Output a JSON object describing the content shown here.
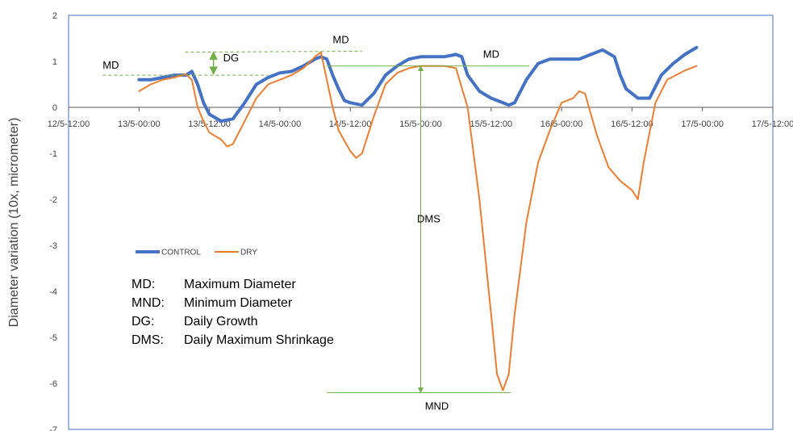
{
  "chart_data": {
    "type": "line",
    "title": "",
    "xlabel": "",
    "ylabel": "Diameter variation (10x, micrometer)",
    "ylim": [
      -7,
      2
    ],
    "xlim": [
      "12/5-12:00",
      "17/5-12:00"
    ],
    "yticks": [
      2,
      1,
      0,
      -1,
      -2,
      -3,
      -4,
      -5,
      -6,
      -7
    ],
    "xticks": [
      "12/5-12:00",
      "13/5-00:00",
      "13/5-12:00",
      "14/5-00:00",
      "14/5-12:00",
      "15/5-00:00",
      "15/5-12:00",
      "16/5-00:00",
      "16/5-12:00",
      "17/5-00:00",
      "17/5-12:00"
    ],
    "grid": false,
    "legend_position": "bottom-left",
    "series": [
      {
        "name": "CONTROL",
        "color": "#4472C4",
        "points": [
          [
            "13/5-00:00",
            0.6
          ],
          [
            "13/5-02:00",
            0.6
          ],
          [
            "13/5-04:00",
            0.65
          ],
          [
            "13/5-06:00",
            0.7
          ],
          [
            "13/5-08:00",
            0.7
          ],
          [
            "13/5-09:00",
            0.78
          ],
          [
            "13/5-10:00",
            0.5
          ],
          [
            "13/5-11:00",
            0.1
          ],
          [
            "13/5-12:00",
            -0.15
          ],
          [
            "13/5-14:00",
            -0.3
          ],
          [
            "13/5-16:00",
            -0.25
          ],
          [
            "13/5-18:00",
            0.1
          ],
          [
            "13/5-20:00",
            0.5
          ],
          [
            "13/5-22:00",
            0.65
          ],
          [
            "14/5-00:00",
            0.75
          ],
          [
            "14/5-02:00",
            0.78
          ],
          [
            "14/5-04:00",
            0.9
          ],
          [
            "14/5-06:00",
            1.05
          ],
          [
            "14/5-07:00",
            1.1
          ],
          [
            "14/5-08:00",
            1.05
          ],
          [
            "14/5-09:00",
            0.7
          ],
          [
            "14/5-10:00",
            0.4
          ],
          [
            "14/5-11:00",
            0.15
          ],
          [
            "14/5-12:00",
            0.1
          ],
          [
            "14/5-14:00",
            0.05
          ],
          [
            "14/5-16:00",
            0.3
          ],
          [
            "14/5-18:00",
            0.7
          ],
          [
            "14/5-20:00",
            0.9
          ],
          [
            "14/5-22:00",
            1.05
          ],
          [
            "15/5-00:00",
            1.1
          ],
          [
            "15/5-04:00",
            1.1
          ],
          [
            "15/5-06:00",
            1.15
          ],
          [
            "15/5-07:00",
            1.1
          ],
          [
            "15/5-08:00",
            0.7
          ],
          [
            "15/5-10:00",
            0.35
          ],
          [
            "15/5-12:00",
            0.2
          ],
          [
            "15/5-14:00",
            0.1
          ],
          [
            "15/5-15:00",
            0.05
          ],
          [
            "15/5-16:00",
            0.1
          ],
          [
            "15/5-18:00",
            0.6
          ],
          [
            "15/5-20:00",
            0.95
          ],
          [
            "15/5-22:00",
            1.05
          ],
          [
            "16/5-00:00",
            1.05
          ],
          [
            "16/5-03:00",
            1.05
          ],
          [
            "16/5-05:00",
            1.15
          ],
          [
            "16/5-07:00",
            1.25
          ],
          [
            "16/5-09:00",
            1.1
          ],
          [
            "16/5-10:00",
            0.7
          ],
          [
            "16/5-11:00",
            0.4
          ],
          [
            "16/5-13:00",
            0.2
          ],
          [
            "16/5-15:00",
            0.2
          ],
          [
            "16/5-17:00",
            0.7
          ],
          [
            "16/5-19:00",
            0.95
          ],
          [
            "16/5-21:00",
            1.15
          ],
          [
            "16/5-23:00",
            1.3
          ]
        ]
      },
      {
        "name": "DRY",
        "color": "#ED7D31",
        "points": [
          [
            "13/5-00:00",
            0.35
          ],
          [
            "13/5-02:00",
            0.5
          ],
          [
            "13/5-04:00",
            0.6
          ],
          [
            "13/5-06:00",
            0.65
          ],
          [
            "13/5-08:00",
            0.72
          ],
          [
            "13/5-09:00",
            0.6
          ],
          [
            "13/5-10:00",
            0.0
          ],
          [
            "13/5-11:00",
            -0.3
          ],
          [
            "13/5-12:00",
            -0.55
          ],
          [
            "13/5-14:00",
            -0.7
          ],
          [
            "13/5-15:00",
            -0.85
          ],
          [
            "13/5-16:00",
            -0.8
          ],
          [
            "13/5-18:00",
            -0.3
          ],
          [
            "13/5-20:00",
            0.2
          ],
          [
            "13/5-22:00",
            0.5
          ],
          [
            "14/5-00:00",
            0.6
          ],
          [
            "14/5-02:00",
            0.7
          ],
          [
            "14/5-04:00",
            0.85
          ],
          [
            "14/5-06:00",
            1.1
          ],
          [
            "14/5-07:00",
            1.2
          ],
          [
            "14/5-08:00",
            0.6
          ],
          [
            "14/5-09:00",
            0.0
          ],
          [
            "14/5-10:00",
            -0.5
          ],
          [
            "14/5-12:00",
            -0.95
          ],
          [
            "14/5-13:00",
            -1.1
          ],
          [
            "14/5-14:00",
            -1.0
          ],
          [
            "14/5-16:00",
            -0.2
          ],
          [
            "14/5-18:00",
            0.5
          ],
          [
            "14/5-20:00",
            0.75
          ],
          [
            "14/5-22:00",
            0.85
          ],
          [
            "15/5-00:00",
            0.9
          ],
          [
            "15/5-04:00",
            0.9
          ],
          [
            "15/5-06:00",
            0.85
          ],
          [
            "15/5-08:00",
            0.0
          ],
          [
            "15/5-10:00",
            -2.0
          ],
          [
            "15/5-12:00",
            -4.5
          ],
          [
            "15/5-13:00",
            -5.8
          ],
          [
            "15/5-14:00",
            -6.15
          ],
          [
            "15/5-15:00",
            -5.8
          ],
          [
            "15/5-16:00",
            -4.5
          ],
          [
            "15/5-18:00",
            -2.5
          ],
          [
            "15/5-20:00",
            -1.2
          ],
          [
            "15/5-22:00",
            -0.5
          ],
          [
            "16/5-00:00",
            0.1
          ],
          [
            "16/5-02:00",
            0.2
          ],
          [
            "16/5-03:00",
            0.35
          ],
          [
            "16/5-04:00",
            0.3
          ],
          [
            "16/5-06:00",
            -0.6
          ],
          [
            "16/5-08:00",
            -1.3
          ],
          [
            "16/5-10:00",
            -1.6
          ],
          [
            "16/5-12:00",
            -1.8
          ],
          [
            "16/5-13:00",
            -2.0
          ],
          [
            "16/5-14:00",
            -1.2
          ],
          [
            "16/5-16:00",
            0.1
          ],
          [
            "16/5-18:00",
            0.6
          ],
          [
            "16/5-21:00",
            0.8
          ],
          [
            "16/5-23:00",
            0.9
          ]
        ]
      }
    ],
    "annotations": [
      {
        "label": "MD",
        "color": "#70AD47",
        "style": "dashed"
      },
      {
        "label": "DG",
        "color": "#70AD47",
        "style": "arrow"
      },
      {
        "label": "MD",
        "color": "#70AD47",
        "style": "dashed"
      },
      {
        "label": "MD",
        "color": "#70AD47",
        "style": "solid"
      },
      {
        "label": "DMS",
        "color": "#70AD47",
        "style": "arrow"
      },
      {
        "label": "MND",
        "color": "#70AD47",
        "style": "solid"
      }
    ],
    "key": [
      {
        "abbr": "MD:",
        "meaning": "Maximum Diameter"
      },
      {
        "abbr": "MND:",
        "meaning": "Minimum Diameter"
      },
      {
        "abbr": "DG:",
        "meaning": "Daily Growth"
      },
      {
        "abbr": "DMS:",
        "meaning": "Daily Maximum Shrinkage"
      }
    ]
  }
}
